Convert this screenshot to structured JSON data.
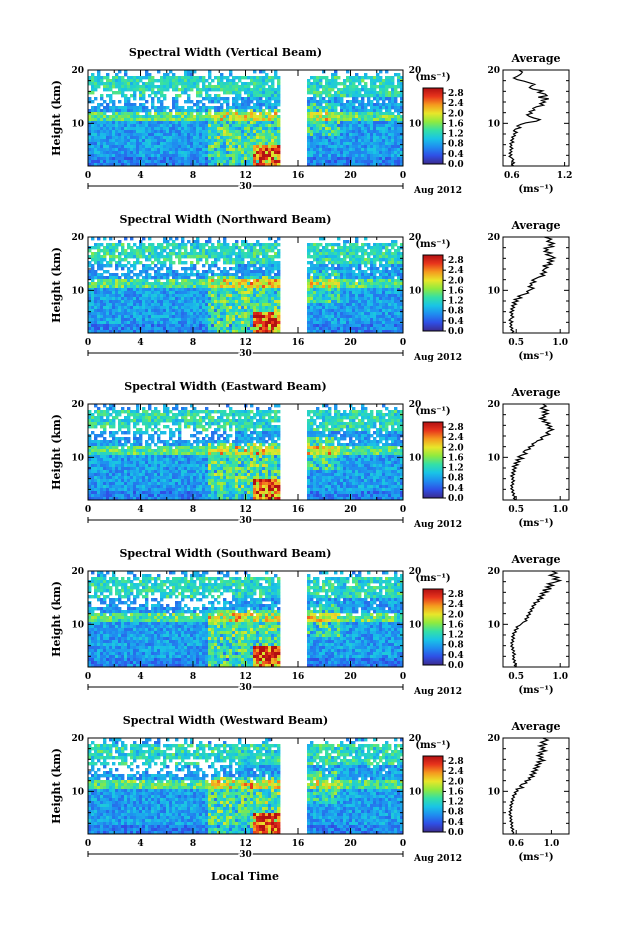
{
  "chart_data": {
    "type": "heatmap",
    "shared": {
      "time_ticks": [
        "0",
        "4",
        "8",
        "12",
        "16",
        "20",
        "0"
      ],
      "date_day": "30",
      "month_year": "Aug 2012",
      "xlabel": "Local Time",
      "ylabel": "Height (km)",
      "height_ticks": [
        "20",
        "10"
      ],
      "height_range_km": [
        2,
        20
      ],
      "time_range_h": [
        0,
        24
      ],
      "data_gap_h": [
        14.5,
        16.5
      ],
      "colorbar_unit": "(ms⁻¹)",
      "colorbar_ticks": [
        "2.8",
        "2.4",
        "2.0",
        "1.6",
        "1.2",
        "0.8",
        "0.4",
        "0.0"
      ],
      "colorbar_range": [
        0,
        3.0
      ],
      "colormap": [
        "#3b2b8f",
        "#2f4fe6",
        "#1f8cf0",
        "#19c4e6",
        "#34e0a6",
        "#8fea3f",
        "#e8e62a",
        "#f59a1e",
        "#e8341c",
        "#b20f12"
      ],
      "avg_title": "Average",
      "avg_xlabel": "(ms⁻¹)"
    },
    "panels": [
      {
        "title": "Spectral Width (Vertical Beam)",
        "avg_xticks": [
          "0.6",
          "1.2"
        ],
        "avg_xlim": [
          0.5,
          1.25
        ],
        "avg_profile": [
          [
            20,
            0.68
          ],
          [
            19.6,
            0.72
          ],
          [
            19.2,
            0.7
          ],
          [
            18.8,
            0.66
          ],
          [
            18.5,
            0.62
          ],
          [
            18.2,
            0.66
          ],
          [
            17.9,
            0.74
          ],
          [
            17.6,
            0.8
          ],
          [
            17.3,
            0.86
          ],
          [
            17,
            0.82
          ],
          [
            16.7,
            0.8
          ],
          [
            16.4,
            0.84
          ],
          [
            16.1,
            0.95
          ],
          [
            15.8,
            0.9
          ],
          [
            15.5,
            0.98
          ],
          [
            15.2,
            1.0
          ],
          [
            14.9,
            0.9
          ],
          [
            14.6,
            1.02
          ],
          [
            14.3,
            0.94
          ],
          [
            14,
            0.98
          ],
          [
            13.7,
            0.92
          ],
          [
            13.4,
            0.96
          ],
          [
            13.1,
            0.88
          ],
          [
            12.8,
            0.84
          ],
          [
            12.5,
            0.86
          ],
          [
            12.2,
            0.8
          ],
          [
            11.9,
            0.83
          ],
          [
            11.6,
            0.77
          ],
          [
            11.3,
            0.8
          ],
          [
            11,
            0.85
          ],
          [
            10.7,
            0.92
          ],
          [
            10.4,
            0.88
          ],
          [
            10.1,
            0.76
          ],
          [
            9.8,
            0.7
          ],
          [
            9.5,
            0.66
          ],
          [
            9.2,
            0.7
          ],
          [
            8.9,
            0.64
          ],
          [
            8.6,
            0.62
          ],
          [
            8.3,
            0.66
          ],
          [
            8,
            0.62
          ],
          [
            7.7,
            0.64
          ],
          [
            7.4,
            0.6
          ],
          [
            7.1,
            0.62
          ],
          [
            6.8,
            0.59
          ],
          [
            6.5,
            0.62
          ],
          [
            6.2,
            0.58
          ],
          [
            5.9,
            0.6
          ],
          [
            5.6,
            0.58
          ],
          [
            5.3,
            0.61
          ],
          [
            5,
            0.58
          ],
          [
            4.7,
            0.6
          ],
          [
            4.4,
            0.57
          ],
          [
            4.1,
            0.6
          ],
          [
            3.8,
            0.57
          ],
          [
            3.5,
            0.6
          ],
          [
            3.2,
            0.62
          ],
          [
            2.9,
            0.6
          ],
          [
            2.6,
            0.63
          ],
          [
            2.3,
            0.6
          ],
          [
            2,
            0.62
          ]
        ]
      },
      {
        "title": "Spectral Width (Northward Beam)",
        "avg_xticks": [
          "0.5",
          "1.0"
        ],
        "avg_xlim": [
          0.35,
          1.1
        ],
        "avg_profile": [
          [
            20,
            0.82
          ],
          [
            19.6,
            0.9
          ],
          [
            19.2,
            0.85
          ],
          [
            18.8,
            0.93
          ],
          [
            18.5,
            0.87
          ],
          [
            18.2,
            0.92
          ],
          [
            17.9,
            0.82
          ],
          [
            17.6,
            0.86
          ],
          [
            17.3,
            0.82
          ],
          [
            17,
            0.9
          ],
          [
            16.7,
            0.84
          ],
          [
            16.4,
            0.9
          ],
          [
            16.1,
            0.94
          ],
          [
            15.8,
            0.86
          ],
          [
            15.5,
            0.92
          ],
          [
            15.2,
            0.86
          ],
          [
            14.9,
            0.9
          ],
          [
            14.6,
            0.8
          ],
          [
            14.3,
            0.86
          ],
          [
            14,
            0.82
          ],
          [
            13.7,
            0.8
          ],
          [
            13.4,
            0.84
          ],
          [
            13.1,
            0.78
          ],
          [
            12.8,
            0.82
          ],
          [
            12.5,
            0.76
          ],
          [
            12.2,
            0.72
          ],
          [
            11.9,
            0.68
          ],
          [
            11.6,
            0.72
          ],
          [
            11.3,
            0.66
          ],
          [
            11,
            0.68
          ],
          [
            10.7,
            0.64
          ],
          [
            10.4,
            0.7
          ],
          [
            10.1,
            0.66
          ],
          [
            9.8,
            0.62
          ],
          [
            9.5,
            0.64
          ],
          [
            9.2,
            0.58
          ],
          [
            8.9,
            0.52
          ],
          [
            8.6,
            0.56
          ],
          [
            8.3,
            0.48
          ],
          [
            8,
            0.52
          ],
          [
            7.7,
            0.46
          ],
          [
            7.4,
            0.5
          ],
          [
            7.1,
            0.45
          ],
          [
            6.8,
            0.48
          ],
          [
            6.5,
            0.44
          ],
          [
            6.2,
            0.47
          ],
          [
            5.9,
            0.43
          ],
          [
            5.6,
            0.46
          ],
          [
            5.3,
            0.44
          ],
          [
            5,
            0.47
          ],
          [
            4.7,
            0.44
          ],
          [
            4.4,
            0.42
          ],
          [
            4.1,
            0.46
          ],
          [
            3.8,
            0.43
          ],
          [
            3.5,
            0.45
          ],
          [
            3.2,
            0.43
          ],
          [
            2.9,
            0.46
          ],
          [
            2.6,
            0.44
          ],
          [
            2.3,
            0.47
          ],
          [
            2,
            0.45
          ]
        ]
      },
      {
        "title": "Spectral Width (Eastward Beam)",
        "avg_xticks": [
          "0.5",
          "1.0"
        ],
        "avg_xlim": [
          0.35,
          1.1
        ],
        "avg_profile": [
          [
            20,
            0.8
          ],
          [
            19.6,
            0.84
          ],
          [
            19.2,
            0.78
          ],
          [
            18.8,
            0.86
          ],
          [
            18.5,
            0.8
          ],
          [
            18.2,
            0.86
          ],
          [
            17.9,
            0.8
          ],
          [
            17.6,
            0.83
          ],
          [
            17.3,
            0.77
          ],
          [
            17,
            0.84
          ],
          [
            16.7,
            0.8
          ],
          [
            16.4,
            0.88
          ],
          [
            16.1,
            0.84
          ],
          [
            15.8,
            0.9
          ],
          [
            15.5,
            0.86
          ],
          [
            15.2,
            0.92
          ],
          [
            14.9,
            0.87
          ],
          [
            14.6,
            0.84
          ],
          [
            14.3,
            0.88
          ],
          [
            14,
            0.82
          ],
          [
            13.7,
            0.78
          ],
          [
            13.4,
            0.8
          ],
          [
            13.1,
            0.74
          ],
          [
            12.8,
            0.72
          ],
          [
            12.5,
            0.68
          ],
          [
            12.2,
            0.7
          ],
          [
            11.9,
            0.64
          ],
          [
            11.6,
            0.66
          ],
          [
            11.3,
            0.6
          ],
          [
            11,
            0.58
          ],
          [
            10.7,
            0.62
          ],
          [
            10.4,
            0.56
          ],
          [
            10.1,
            0.52
          ],
          [
            9.8,
            0.58
          ],
          [
            9.5,
            0.5
          ],
          [
            9.2,
            0.54
          ],
          [
            8.9,
            0.48
          ],
          [
            8.6,
            0.52
          ],
          [
            8.3,
            0.46
          ],
          [
            8,
            0.5
          ],
          [
            7.7,
            0.46
          ],
          [
            7.4,
            0.49
          ],
          [
            7.1,
            0.45
          ],
          [
            6.8,
            0.48
          ],
          [
            6.5,
            0.44
          ],
          [
            6.2,
            0.47
          ],
          [
            5.9,
            0.45
          ],
          [
            5.6,
            0.48
          ],
          [
            5.3,
            0.45
          ],
          [
            5,
            0.47
          ],
          [
            4.7,
            0.44
          ],
          [
            4.4,
            0.46
          ],
          [
            4.1,
            0.44
          ],
          [
            3.8,
            0.47
          ],
          [
            3.5,
            0.45
          ],
          [
            3.2,
            0.48
          ],
          [
            2.9,
            0.46
          ],
          [
            2.6,
            0.49
          ],
          [
            2.3,
            0.47
          ],
          [
            2,
            0.5
          ]
        ]
      },
      {
        "title": "Spectral Width (Southward Beam)",
        "avg_xticks": [
          "0.5",
          "1.0"
        ],
        "avg_xlim": [
          0.35,
          1.1
        ],
        "avg_profile": [
          [
            20,
            0.9
          ],
          [
            19.6,
            0.96
          ],
          [
            19.2,
            0.88
          ],
          [
            18.8,
            0.98
          ],
          [
            18.5,
            0.92
          ],
          [
            18.2,
            1.0
          ],
          [
            17.9,
            0.94
          ],
          [
            17.6,
            0.86
          ],
          [
            17.3,
            0.92
          ],
          [
            17,
            0.84
          ],
          [
            16.7,
            0.9
          ],
          [
            16.4,
            0.8
          ],
          [
            16.1,
            0.86
          ],
          [
            15.8,
            0.78
          ],
          [
            15.5,
            0.82
          ],
          [
            15.2,
            0.76
          ],
          [
            14.9,
            0.8
          ],
          [
            14.6,
            0.74
          ],
          [
            14.3,
            0.76
          ],
          [
            14,
            0.7
          ],
          [
            13.7,
            0.72
          ],
          [
            13.4,
            0.68
          ],
          [
            13.1,
            0.7
          ],
          [
            12.8,
            0.66
          ],
          [
            12.5,
            0.68
          ],
          [
            12.2,
            0.64
          ],
          [
            11.9,
            0.66
          ],
          [
            11.6,
            0.62
          ],
          [
            11.3,
            0.64
          ],
          [
            11,
            0.6
          ],
          [
            10.7,
            0.62
          ],
          [
            10.4,
            0.58
          ],
          [
            10.1,
            0.56
          ],
          [
            9.8,
            0.54
          ],
          [
            9.5,
            0.5
          ],
          [
            9.2,
            0.52
          ],
          [
            8.9,
            0.48
          ],
          [
            8.6,
            0.5
          ],
          [
            8.3,
            0.46
          ],
          [
            8,
            0.48
          ],
          [
            7.7,
            0.45
          ],
          [
            7.4,
            0.48
          ],
          [
            7.1,
            0.45
          ],
          [
            6.8,
            0.47
          ],
          [
            6.5,
            0.44
          ],
          [
            6.2,
            0.46
          ],
          [
            5.9,
            0.44
          ],
          [
            5.6,
            0.47
          ],
          [
            5.3,
            0.45
          ],
          [
            5,
            0.48
          ],
          [
            4.7,
            0.46
          ],
          [
            4.4,
            0.49
          ],
          [
            4.1,
            0.46
          ],
          [
            3.8,
            0.48
          ],
          [
            3.5,
            0.46
          ],
          [
            3.2,
            0.49
          ],
          [
            2.9,
            0.47
          ],
          [
            2.6,
            0.5
          ],
          [
            2.3,
            0.48
          ],
          [
            2,
            0.5
          ]
        ]
      },
      {
        "title": "Spectral Width (Westward Beam)",
        "avg_xticks": [
          "0.6",
          "1.0"
        ],
        "avg_xlim": [
          0.45,
          1.2
        ],
        "avg_profile": [
          [
            20,
            0.9
          ],
          [
            19.6,
            0.96
          ],
          [
            19.2,
            0.88
          ],
          [
            18.8,
            0.94
          ],
          [
            18.5,
            0.86
          ],
          [
            18.2,
            0.92
          ],
          [
            17.9,
            0.88
          ],
          [
            17.6,
            0.94
          ],
          [
            17.3,
            0.86
          ],
          [
            17,
            0.9
          ],
          [
            16.7,
            0.84
          ],
          [
            16.4,
            0.9
          ],
          [
            16.1,
            0.86
          ],
          [
            15.8,
            0.92
          ],
          [
            15.5,
            0.84
          ],
          [
            15.2,
            0.88
          ],
          [
            14.9,
            0.82
          ],
          [
            14.6,
            0.86
          ],
          [
            14.3,
            0.8
          ],
          [
            14,
            0.84
          ],
          [
            13.7,
            0.78
          ],
          [
            13.4,
            0.82
          ],
          [
            13.1,
            0.76
          ],
          [
            12.8,
            0.8
          ],
          [
            12.5,
            0.74
          ],
          [
            12.2,
            0.76
          ],
          [
            11.9,
            0.7
          ],
          [
            11.6,
            0.72
          ],
          [
            11.3,
            0.66
          ],
          [
            11,
            0.64
          ],
          [
            10.7,
            0.68
          ],
          [
            10.4,
            0.6
          ],
          [
            10.1,
            0.62
          ],
          [
            9.8,
            0.58
          ],
          [
            9.5,
            0.6
          ],
          [
            9.2,
            0.56
          ],
          [
            8.9,
            0.58
          ],
          [
            8.6,
            0.55
          ],
          [
            8.3,
            0.57
          ],
          [
            8,
            0.54
          ],
          [
            7.7,
            0.56
          ],
          [
            7.4,
            0.53
          ],
          [
            7.1,
            0.55
          ],
          [
            6.8,
            0.53
          ],
          [
            6.5,
            0.55
          ],
          [
            6.2,
            0.52
          ],
          [
            5.9,
            0.54
          ],
          [
            5.6,
            0.52
          ],
          [
            5.3,
            0.55
          ],
          [
            5,
            0.53
          ],
          [
            4.7,
            0.55
          ],
          [
            4.4,
            0.53
          ],
          [
            4.1,
            0.56
          ],
          [
            3.8,
            0.54
          ],
          [
            3.5,
            0.56
          ],
          [
            3.2,
            0.54
          ],
          [
            2.9,
            0.57
          ],
          [
            2.6,
            0.55
          ],
          [
            2.3,
            0.57
          ],
          [
            2,
            0.56
          ]
        ]
      }
    ]
  }
}
